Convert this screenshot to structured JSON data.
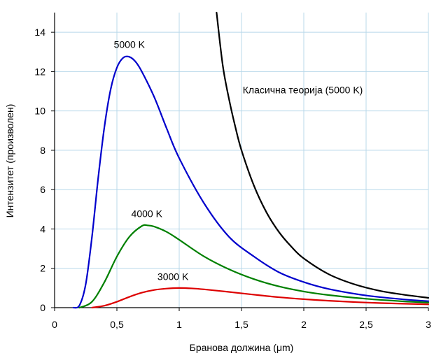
{
  "chart_data": {
    "type": "line",
    "title": "",
    "xlabel": "Бранова должина (μm)",
    "ylabel": "Интензитет (произволен)",
    "xlim": [
      0,
      3
    ],
    "ylim": [
      0,
      15
    ],
    "x_ticks": [
      "0",
      "0,5",
      "1",
      "1,5",
      "2",
      "2,5",
      "3"
    ],
    "y_ticks": [
      "0",
      "2",
      "4",
      "6",
      "8",
      "10",
      "12",
      "14"
    ],
    "grid": true,
    "grid_color": "#b8d8ea",
    "series": [
      {
        "name": "5000 K",
        "color": "#0000cc",
        "points": [
          [
            0.15,
            0.0
          ],
          [
            0.2,
            0.12
          ],
          [
            0.25,
            1.2
          ],
          [
            0.3,
            3.6
          ],
          [
            0.35,
            6.6
          ],
          [
            0.4,
            9.2
          ],
          [
            0.45,
            11.1
          ],
          [
            0.5,
            12.2
          ],
          [
            0.55,
            12.7
          ],
          [
            0.6,
            12.75
          ],
          [
            0.65,
            12.5
          ],
          [
            0.7,
            12.0
          ],
          [
            0.8,
            10.7
          ],
          [
            0.9,
            9.1
          ],
          [
            1.0,
            7.6
          ],
          [
            1.2,
            5.3
          ],
          [
            1.4,
            3.6
          ],
          [
            1.6,
            2.6
          ],
          [
            1.8,
            1.8
          ],
          [
            2.0,
            1.3
          ],
          [
            2.2,
            0.95
          ],
          [
            2.5,
            0.62
          ],
          [
            2.8,
            0.42
          ],
          [
            3.0,
            0.33
          ]
        ]
      },
      {
        "name": "4000 K",
        "color": "#008000",
        "points": [
          [
            0.2,
            0.0
          ],
          [
            0.3,
            0.3
          ],
          [
            0.4,
            1.3
          ],
          [
            0.5,
            2.6
          ],
          [
            0.6,
            3.6
          ],
          [
            0.7,
            4.15
          ],
          [
            0.75,
            4.18
          ],
          [
            0.8,
            4.12
          ],
          [
            0.9,
            3.85
          ],
          [
            1.0,
            3.45
          ],
          [
            1.2,
            2.6
          ],
          [
            1.4,
            1.95
          ],
          [
            1.6,
            1.45
          ],
          [
            1.8,
            1.08
          ],
          [
            2.0,
            0.82
          ],
          [
            2.2,
            0.64
          ],
          [
            2.5,
            0.45
          ],
          [
            2.8,
            0.32
          ],
          [
            3.0,
            0.26
          ]
        ]
      },
      {
        "name": "3000 K",
        "color": "#dd0000",
        "points": [
          [
            0.3,
            0.0
          ],
          [
            0.4,
            0.1
          ],
          [
            0.5,
            0.3
          ],
          [
            0.6,
            0.55
          ],
          [
            0.7,
            0.76
          ],
          [
            0.8,
            0.9
          ],
          [
            0.9,
            0.97
          ],
          [
            1.0,
            1.0
          ],
          [
            1.1,
            0.98
          ],
          [
            1.2,
            0.93
          ],
          [
            1.4,
            0.8
          ],
          [
            1.6,
            0.66
          ],
          [
            1.8,
            0.53
          ],
          [
            2.0,
            0.43
          ],
          [
            2.2,
            0.35
          ],
          [
            2.5,
            0.26
          ],
          [
            2.8,
            0.2
          ],
          [
            3.0,
            0.17
          ]
        ]
      },
      {
        "name": "Класична теорија (5000 K)",
        "color": "#000000",
        "points": [
          [
            1.3,
            15.0
          ],
          [
            1.35,
            12.3
          ],
          [
            1.4,
            10.6
          ],
          [
            1.45,
            9.2
          ],
          [
            1.5,
            8.0
          ],
          [
            1.6,
            6.2
          ],
          [
            1.7,
            4.85
          ],
          [
            1.8,
            3.85
          ],
          [
            1.9,
            3.1
          ],
          [
            2.0,
            2.5
          ],
          [
            2.2,
            1.7
          ],
          [
            2.4,
            1.2
          ],
          [
            2.6,
            0.87
          ],
          [
            2.8,
            0.66
          ],
          [
            3.0,
            0.5
          ]
        ]
      }
    ],
    "annotations": [
      {
        "text": "5000 K",
        "x": 0.6,
        "y": 13.2
      },
      {
        "text": "4000 K",
        "x": 0.74,
        "y": 4.6
      },
      {
        "text": "3000 K",
        "x": 0.95,
        "y": 1.4
      },
      {
        "text": "Класична теорија (5000 K)",
        "x": 1.51,
        "y": 10.9,
        "anchor": "start"
      }
    ]
  }
}
